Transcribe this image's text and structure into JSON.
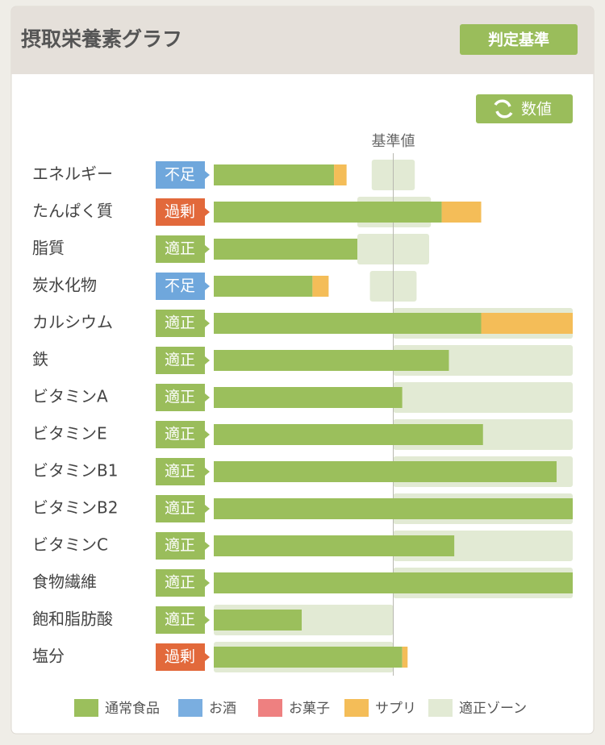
{
  "header": {
    "title": "摂取栄養素グラフ",
    "criteria_button": "判定基準"
  },
  "toggle_button": "数値",
  "chart_data": {
    "type": "bar",
    "categories": [
      "エネルギー",
      "たんぱく質",
      "脂質",
      "炭水化物",
      "カルシウム",
      "鉄",
      "ビタミンA",
      "ビタミンE",
      "ビタミンB1",
      "ビタミンB2",
      "ビタミンC",
      "食物繊維",
      "飽和脂肪酸",
      "塩分"
    ],
    "statuses": [
      "不足",
      "過剰",
      "適正",
      "不足",
      "適正",
      "適正",
      "適正",
      "適正",
      "適正",
      "適正",
      "適正",
      "適正",
      "適正",
      "過剰"
    ],
    "status_colors": {
      "不足": "#6fa7dc",
      "過剰": "#e2693b",
      "適正": "#9abd5b"
    },
    "series": [
      {
        "name": "通常食品",
        "color": "#9bbf5c",
        "values": [
          67,
          127,
          80,
          55,
          149,
          131,
          105,
          150,
          191,
          200,
          134,
          200,
          49,
          105
        ]
      },
      {
        "name": "お酒",
        "color": "#7aaee0",
        "values": [
          0,
          0,
          0,
          0,
          0,
          0,
          0,
          0,
          0,
          0,
          0,
          0,
          0,
          0
        ]
      },
      {
        "name": "お菓子",
        "color": "#ee8080",
        "values": [
          0,
          0,
          0,
          0,
          0,
          0,
          0,
          0,
          0,
          0,
          0,
          0,
          0,
          0
        ]
      },
      {
        "name": "サプリ",
        "color": "#f4bd58",
        "values": [
          7,
          22,
          0,
          9,
          51,
          0,
          0,
          0,
          0,
          0,
          0,
          0,
          0,
          3
        ]
      }
    ],
    "zone": {
      "name": "適正ゾーン",
      "color": "#e2ead4",
      "ranges": [
        [
          88,
          112
        ],
        [
          80,
          121
        ],
        [
          80,
          120
        ],
        [
          87,
          113
        ],
        [
          100,
          200
        ],
        [
          100,
          200
        ],
        [
          100,
          200
        ],
        [
          100,
          200
        ],
        [
          100,
          200
        ],
        [
          100,
          200
        ],
        [
          100,
          200
        ],
        [
          100,
          200
        ],
        [
          0,
          100
        ],
        [
          0,
          100
        ]
      ]
    },
    "reference": {
      "value": 100,
      "label": "基準値"
    },
    "xlim": [
      0,
      200
    ]
  }
}
